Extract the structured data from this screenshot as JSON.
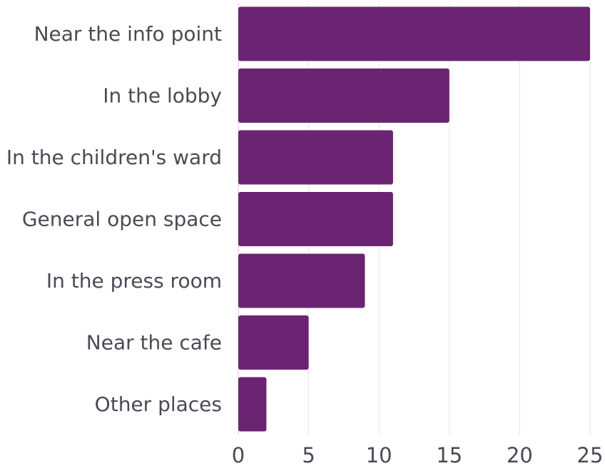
{
  "chart_data": {
    "type": "bar",
    "orientation": "horizontal",
    "categories": [
      "Near the info point",
      "In the lobby",
      "In the children's ward",
      "General open space",
      "In the press room",
      "Near the cafe",
      "Other places"
    ],
    "values": [
      25,
      15,
      11,
      11,
      9,
      5,
      2
    ],
    "xlim": [
      0,
      25
    ],
    "xticks": [
      0,
      5,
      10,
      15,
      20,
      25
    ],
    "grid": "vertical",
    "legend": "none",
    "title": "",
    "xlabel": "",
    "ylabel": "",
    "colors": {
      "bar": "#6b2472"
    }
  }
}
